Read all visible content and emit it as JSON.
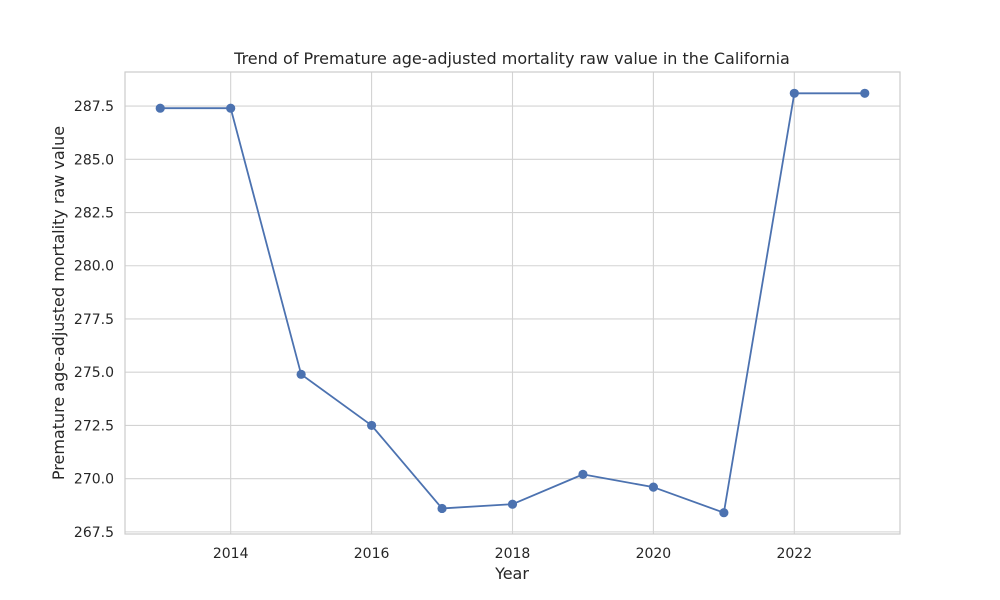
{
  "chart_data": {
    "type": "line",
    "title": "Trend of Premature age-adjusted mortality raw value in the California",
    "xlabel": "Year",
    "ylabel": "Premature age-adjusted mortality raw value",
    "x": [
      2013,
      2014,
      2015,
      2016,
      2017,
      2018,
      2019,
      2020,
      2021,
      2022,
      2023
    ],
    "series": [
      {
        "values": [
          287.4,
          287.4,
          274.9,
          272.5,
          268.6,
          268.8,
          270.2,
          269.6,
          268.4,
          288.1,
          288.1
        ]
      }
    ],
    "xlim": [
      2012.5,
      2023.5
    ],
    "ylim": [
      267.4,
      289.1
    ],
    "x_ticks": [
      2014,
      2016,
      2018,
      2020,
      2022
    ],
    "x_tick_labels": [
      "2014",
      "2016",
      "2018",
      "2020",
      "2022"
    ],
    "y_ticks": [
      267.5,
      270.0,
      272.5,
      275.0,
      277.5,
      280.0,
      282.5,
      285.0,
      287.5
    ],
    "y_tick_labels": [
      "267.5",
      "270.0",
      "272.5",
      "275.0",
      "277.5",
      "280.0",
      "282.5",
      "285.0",
      "287.5"
    ],
    "grid": true,
    "legend": "none",
    "line_color": "#4c72b0"
  }
}
